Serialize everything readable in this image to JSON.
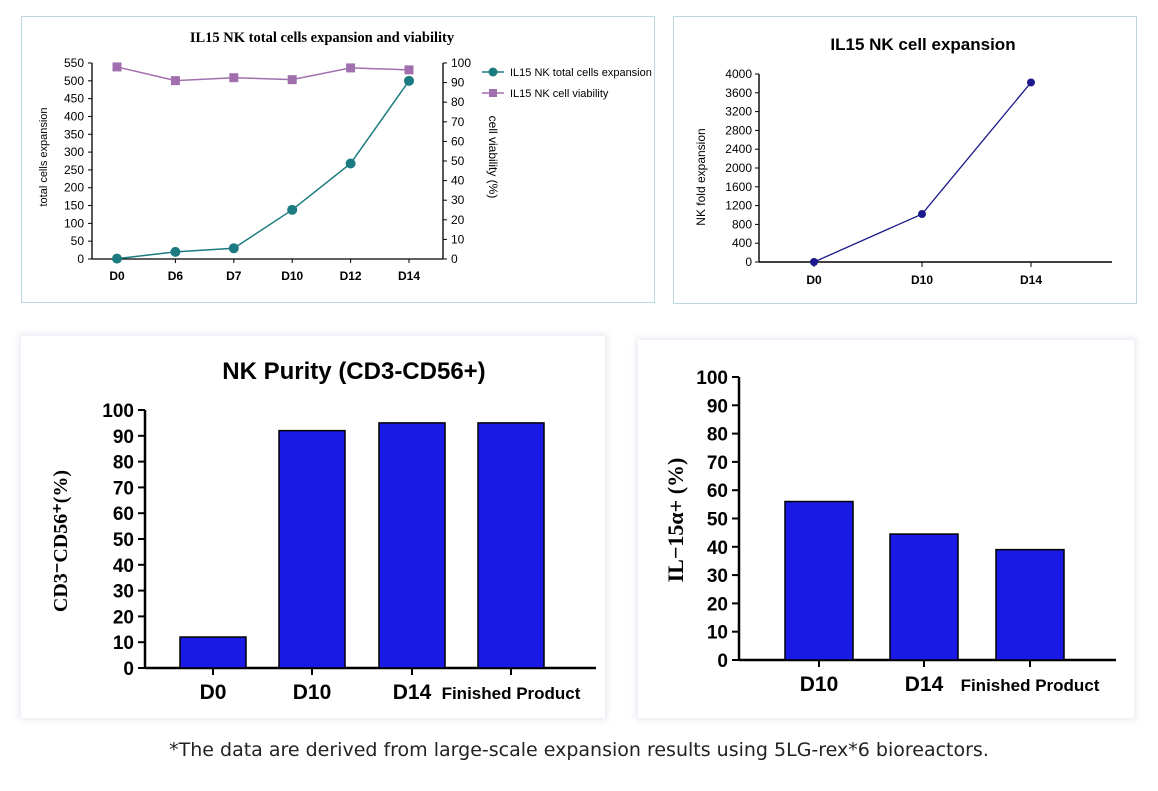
{
  "colors": {
    "teal": "#1c7b80",
    "purple": "#a26fae",
    "navy": "#1a1a8c",
    "bar_blue": "#1a1ae6"
  },
  "chart_data": [
    {
      "type": "line",
      "title": "IL15 NK total cells expansion and viability",
      "categories": [
        "D0",
        "D6",
        "D7",
        "D10",
        "D12",
        "D14"
      ],
      "ylabel": "total cells expansion",
      "y2label": "cell viability (%)",
      "ylim": [
        0,
        550
      ],
      "y2lim": [
        0,
        100
      ],
      "yticks": [
        "0",
        "50",
        "100",
        "150",
        "200",
        "250",
        "300",
        "350",
        "400",
        "450",
        "500",
        "550"
      ],
      "y2ticks": [
        "0",
        "10",
        "20",
        "30",
        "40",
        "50",
        "60",
        "70",
        "80",
        "90",
        "100"
      ],
      "legend_position": "right",
      "series": [
        {
          "name": "IL15 NK total cells expansion",
          "axis": "left",
          "marker": "circle",
          "values": [
            1,
            20,
            30,
            138,
            268,
            500
          ]
        },
        {
          "name": "IL15 NK cell viability",
          "axis": "right",
          "marker": "square",
          "values": [
            98,
            91,
            92.5,
            91.5,
            97.5,
            96.5
          ]
        }
      ]
    },
    {
      "type": "line",
      "title": "IL15 NK cell expansion",
      "categories": [
        "D0",
        "D10",
        "D14"
      ],
      "ylabel": "NK fold expansion",
      "ylim": [
        0,
        4000
      ],
      "yticks": [
        "0",
        "400",
        "800",
        "1200",
        "1600",
        "2000",
        "2400",
        "2800",
        "3200",
        "3600",
        "4000"
      ],
      "series": [
        {
          "values": [
            0,
            1020,
            3820
          ]
        }
      ]
    },
    {
      "type": "bar",
      "title": "NK Purity (CD3-CD56+)",
      "categories": [
        "D0",
        "D10",
        "D14",
        "Finished Product"
      ],
      "ylabel": "CD3⁻CD56⁺(%)",
      "ylim": [
        0,
        100
      ],
      "yticks": [
        "0",
        "10",
        "20",
        "30",
        "40",
        "50",
        "60",
        "70",
        "80",
        "90",
        "100"
      ],
      "values": [
        12,
        92,
        95,
        95
      ]
    },
    {
      "type": "bar",
      "title": "",
      "categories": [
        "D10",
        "D14",
        "Finished Product"
      ],
      "ylabel": "IL−15α+ (%)",
      "ylim": [
        0,
        100
      ],
      "yticks": [
        "0",
        "10",
        "20",
        "30",
        "40",
        "50",
        "60",
        "70",
        "80",
        "90",
        "100"
      ],
      "values": [
        56,
        44.5,
        39
      ]
    }
  ],
  "footnote": "*The data are derived from large-scale expansion results using 5LG-rex*6 bioreactors."
}
